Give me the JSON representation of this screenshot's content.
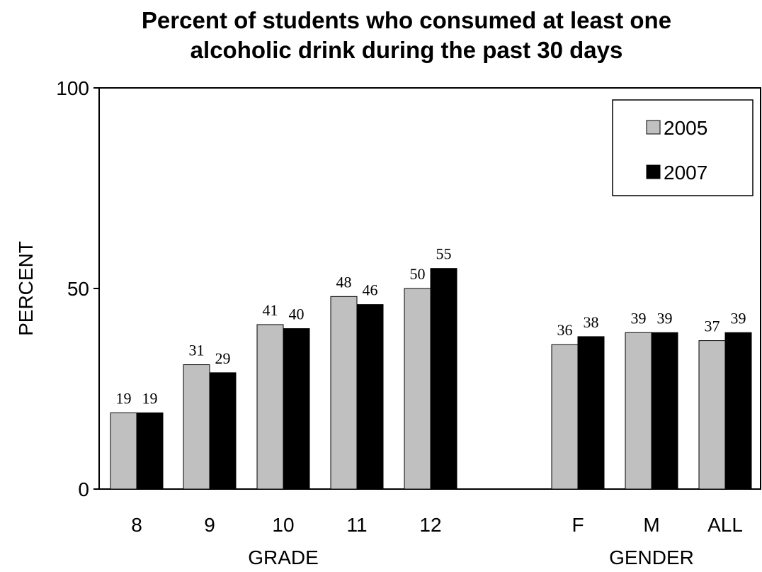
{
  "chart_data": {
    "type": "bar",
    "title_line1": "Percent of students who consumed at least one",
    "title_line2": "alcoholic drink during the past 30 days",
    "ylabel": "PERCENT",
    "ylim": [
      0,
      100
    ],
    "yticks": [
      "0",
      "50",
      "100"
    ],
    "categories": [
      "8",
      "9",
      "10",
      "11",
      "12",
      "F",
      "M",
      "ALL"
    ],
    "groups": [
      {
        "label": "GRADE",
        "categories": [
          "8",
          "9",
          "10",
          "11",
          "12"
        ]
      },
      {
        "label": "GENDER",
        "categories": [
          "F",
          "M",
          "ALL"
        ]
      }
    ],
    "series": [
      {
        "name": "2005",
        "color": "#c0c0c0",
        "values": [
          19,
          31,
          41,
          48,
          50,
          36,
          39,
          37
        ]
      },
      {
        "name": "2007",
        "color": "#000000",
        "values": [
          19,
          29,
          40,
          46,
          55,
          38,
          39,
          39
        ]
      }
    ],
    "legend_position": "top-right",
    "grid": false
  }
}
